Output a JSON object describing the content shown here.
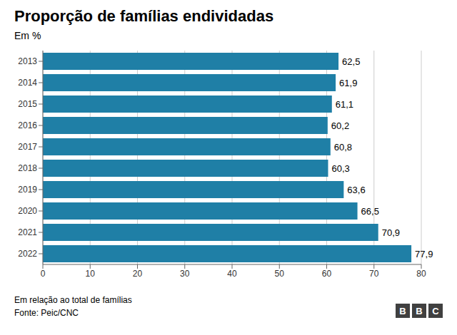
{
  "chart_data": {
    "type": "bar",
    "orientation": "horizontal",
    "title": "Proporção de famílias endividadas",
    "subtitle": "Em %",
    "categories": [
      "2013",
      "2014",
      "2015",
      "2016",
      "2017",
      "2018",
      "2019",
      "2020",
      "2021",
      "2022"
    ],
    "values": [
      62.5,
      61.9,
      61.1,
      60.2,
      60.8,
      60.3,
      63.6,
      66.5,
      70.9,
      77.9
    ],
    "value_labels": [
      "62,5",
      "61,9",
      "61,1",
      "60,2",
      "60,8",
      "60,3",
      "63,6",
      "66,5",
      "70,9",
      "77,9"
    ],
    "color": "#1f7fa6",
    "xlim": [
      0,
      80
    ],
    "xticks": [
      0,
      10,
      20,
      30,
      40,
      50,
      60,
      70,
      80
    ],
    "grid": true,
    "data_labels": true,
    "annotations": [
      "Em relação ao total de famílias",
      "Fonte: Peic/CNC",
      "BBC"
    ]
  }
}
